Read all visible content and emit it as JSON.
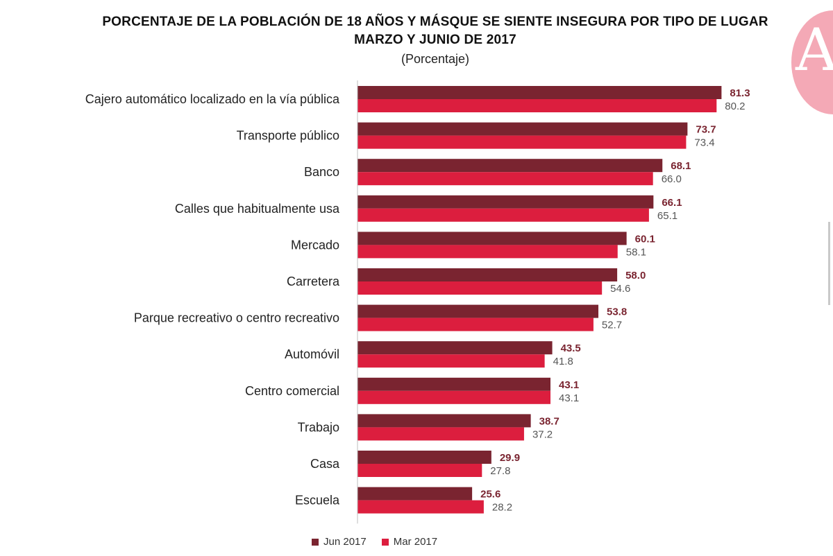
{
  "header": {
    "title_line1": "PORCENTAJE DE LA POBLACIÓN DE 18 AÑOS Y MÁSQUE SE SIENTE INSEGURA POR TIPO DE LUGAR",
    "title_line2": "MARZO Y JUNIO DE 2017",
    "subtitle": "(Porcentaje)"
  },
  "logo": {
    "letter": "A",
    "color": "#f4a9b6"
  },
  "chart_data": {
    "type": "bar",
    "orientation": "horizontal",
    "title": "PORCENTAJE DE LA POBLACIÓN DE 18 AÑOS Y MÁSQUE SE SIENTE INSEGURA POR TIPO DE LUGAR MARZO Y JUNIO DE 2017",
    "subtitle": "(Porcentaje)",
    "categories": [
      "Cajero automático localizado en la vía pública",
      "Transporte público",
      "Banco",
      "Calles que habitualmente usa",
      "Mercado",
      "Carretera",
      "Parque recreativo o centro recreativo",
      "Automóvil",
      "Centro comercial",
      "Trabajo",
      "Casa",
      "Escuela"
    ],
    "series": [
      {
        "name": "Jun 2017",
        "color": "#7a2430",
        "label_color": "#7a2430",
        "values": [
          81.3,
          73.7,
          68.1,
          66.1,
          60.1,
          58.0,
          53.8,
          43.5,
          43.1,
          38.7,
          29.9,
          25.6
        ],
        "labels": [
          "81.3",
          "73.7",
          "68.1",
          "66.1",
          "60.1",
          "58.0",
          "53.8",
          "43.5",
          "43.1",
          "38.7",
          "29.9",
          "25.6"
        ]
      },
      {
        "name": "Mar 2017",
        "color": "#dc1e3e",
        "label_color": "#555555",
        "values": [
          80.2,
          73.4,
          66.0,
          65.1,
          58.1,
          54.6,
          52.7,
          41.8,
          43.1,
          37.2,
          27.8,
          28.2
        ],
        "labels": [
          "80.2",
          "73.4",
          "66.0",
          "65.1",
          "58.1",
          "54.6",
          "52.7",
          "41.8",
          "43.1",
          "37.2",
          "27.8",
          "28.2"
        ]
      }
    ],
    "xlim": [
      0,
      100
    ],
    "grid": false,
    "legend_position": "bottom"
  }
}
